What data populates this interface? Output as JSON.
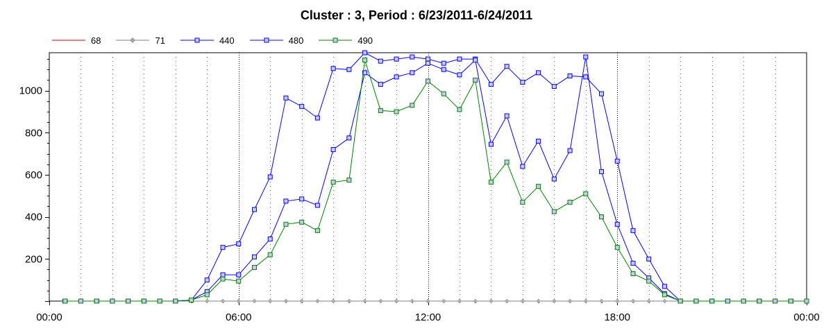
{
  "chart_data": {
    "type": "line",
    "title": "Cluster : 3, Period : 6/23/2011-6/24/2011",
    "xlabel": "",
    "ylabel": "",
    "x_tick_labels": [
      "00:00",
      "06:00",
      "12:00",
      "18:00",
      "00:00"
    ],
    "x_tick_hours": [
      0,
      6,
      12,
      18,
      24
    ],
    "y_ticks": [
      200,
      400,
      600,
      800,
      1000
    ],
    "xlim": [
      0,
      24
    ],
    "ylim": [
      0,
      1180
    ],
    "grid": "dotted",
    "legend_position": "top-left",
    "x_hours": [
      0.5,
      1,
      1.5,
      2,
      2.5,
      3,
      3.5,
      4,
      4.5,
      5,
      5.5,
      6,
      6.5,
      7,
      7.5,
      8,
      8.5,
      9,
      9.5,
      10,
      10.5,
      11,
      11.5,
      12,
      12.5,
      13,
      13.5,
      14,
      14.5,
      15,
      15.5,
      16,
      16.5,
      17,
      17.5,
      18,
      18.5,
      19,
      19.5,
      20,
      20.5,
      21,
      21.5,
      22,
      22.5,
      23,
      23.5,
      24
    ],
    "series": [
      {
        "name": "68",
        "color": "#c00000",
        "marker": "none",
        "values": [
          0,
          0,
          0,
          0,
          0,
          0,
          0,
          0,
          0,
          0,
          0,
          0,
          0,
          0,
          0,
          0,
          0,
          0,
          0,
          0,
          0,
          0,
          0,
          0,
          0,
          0,
          0,
          0,
          0,
          0,
          0,
          0,
          0,
          0,
          0,
          0,
          0,
          0,
          0,
          0,
          0,
          0,
          0,
          0,
          0,
          0,
          0,
          0
        ]
      },
      {
        "name": "71",
        "color": "#808080",
        "marker": "diamond",
        "values": [
          0,
          0,
          0,
          0,
          0,
          0,
          0,
          0,
          0,
          0,
          0,
          0,
          0,
          0,
          0,
          0,
          0,
          0,
          0,
          0,
          0,
          0,
          0,
          0,
          0,
          0,
          0,
          0,
          0,
          0,
          0,
          0,
          0,
          0,
          0,
          0,
          0,
          0,
          0,
          0,
          0,
          0,
          0,
          0,
          0,
          0,
          0,
          0
        ]
      },
      {
        "name": "440",
        "color": "#0000ff",
        "marker": "square",
        "values": [
          0,
          0,
          0,
          0,
          0,
          0,
          0,
          0,
          5,
          100,
          255,
          272,
          435,
          590,
          965,
          925,
          870,
          1105,
          1100,
          1180,
          1140,
          1150,
          1160,
          1150,
          1130,
          1150,
          1150,
          1030,
          1115,
          1040,
          1085,
          1020,
          1070,
          1065,
          985,
          665,
          335,
          200,
          70,
          0,
          0,
          0,
          0,
          0,
          0,
          0,
          0,
          0
        ]
      },
      {
        "name": "480",
        "color": "#0000ff",
        "marker": "square",
        "values": [
          0,
          0,
          0,
          0,
          0,
          0,
          0,
          0,
          5,
          45,
          125,
          125,
          210,
          295,
          475,
          485,
          455,
          720,
          775,
          1085,
          1030,
          1065,
          1085,
          1130,
          1100,
          1075,
          1145,
          745,
          880,
          640,
          760,
          580,
          715,
          1160,
          615,
          365,
          180,
          110,
          35,
          0,
          0,
          0,
          0,
          0,
          0,
          0,
          0,
          0
        ]
      },
      {
        "name": "490",
        "color": "#008000",
        "marker": "square",
        "values": [
          0,
          0,
          0,
          0,
          0,
          0,
          0,
          0,
          5,
          30,
          105,
          95,
          160,
          220,
          365,
          375,
          335,
          565,
          575,
          1145,
          905,
          900,
          930,
          1045,
          985,
          910,
          1050,
          565,
          660,
          470,
          545,
          425,
          470,
          510,
          400,
          255,
          130,
          95,
          30,
          0,
          0,
          0,
          0,
          0,
          0,
          0,
          0,
          0
        ]
      }
    ]
  }
}
